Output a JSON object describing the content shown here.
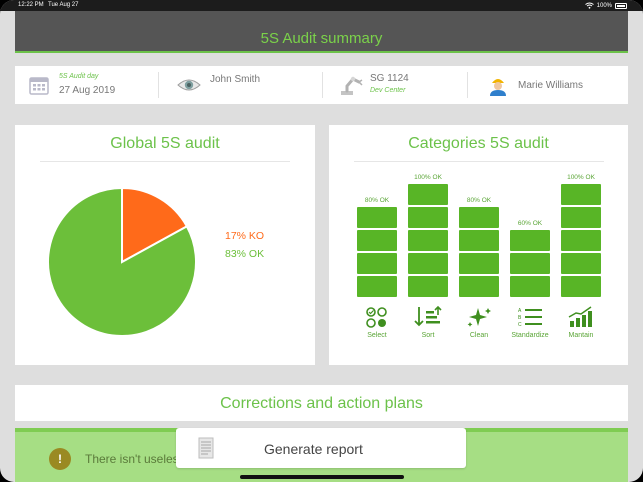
{
  "status": {
    "time": "12:22 PM",
    "date": "Tue Aug 27",
    "battery": "100%"
  },
  "header": {
    "title": "5S Audit summary"
  },
  "info": {
    "audit_day_label": "5S Audit day",
    "audit_day_value": "27 Aug 2019",
    "auditor": "John Smith",
    "site_code": "SG 1124",
    "site_sub": "Dev Center",
    "manager": "Marie Williams"
  },
  "global": {
    "title": "Global 5S audit",
    "ko_label": "17% KO",
    "ok_label": "83% OK"
  },
  "chart_data": [
    {
      "type": "pie",
      "title": "Global 5S audit",
      "labels": [
        "KO",
        "OK"
      ],
      "values": [
        17,
        83
      ],
      "colors": [
        "#ff6a1a",
        "#6cbf3a"
      ]
    },
    {
      "type": "bar",
      "title": "Categories 5S audit",
      "categories": [
        "Select",
        "Sort",
        "Clean",
        "Standardize",
        "Mantain"
      ],
      "values": [
        80,
        100,
        80,
        60,
        100
      ],
      "value_labels": [
        "80% OK",
        "100% OK",
        "80% OK",
        "60% OK",
        "100% OK"
      ],
      "icons": [
        "shapes-icon",
        "sort-icon",
        "sparkle-icon",
        "list-icon",
        "growth-chart-icon"
      ]
    }
  ],
  "categories": {
    "title": "Categories 5S audit"
  },
  "corrections": {
    "title": "Corrections and action plans"
  },
  "notice": {
    "text": "There isn't useles"
  },
  "generate": {
    "label": "Generate report"
  },
  "colors": {
    "accent": "#6cc24a",
    "ko": "#ff6a1a",
    "bar": "#58b526",
    "header": "#555555"
  }
}
